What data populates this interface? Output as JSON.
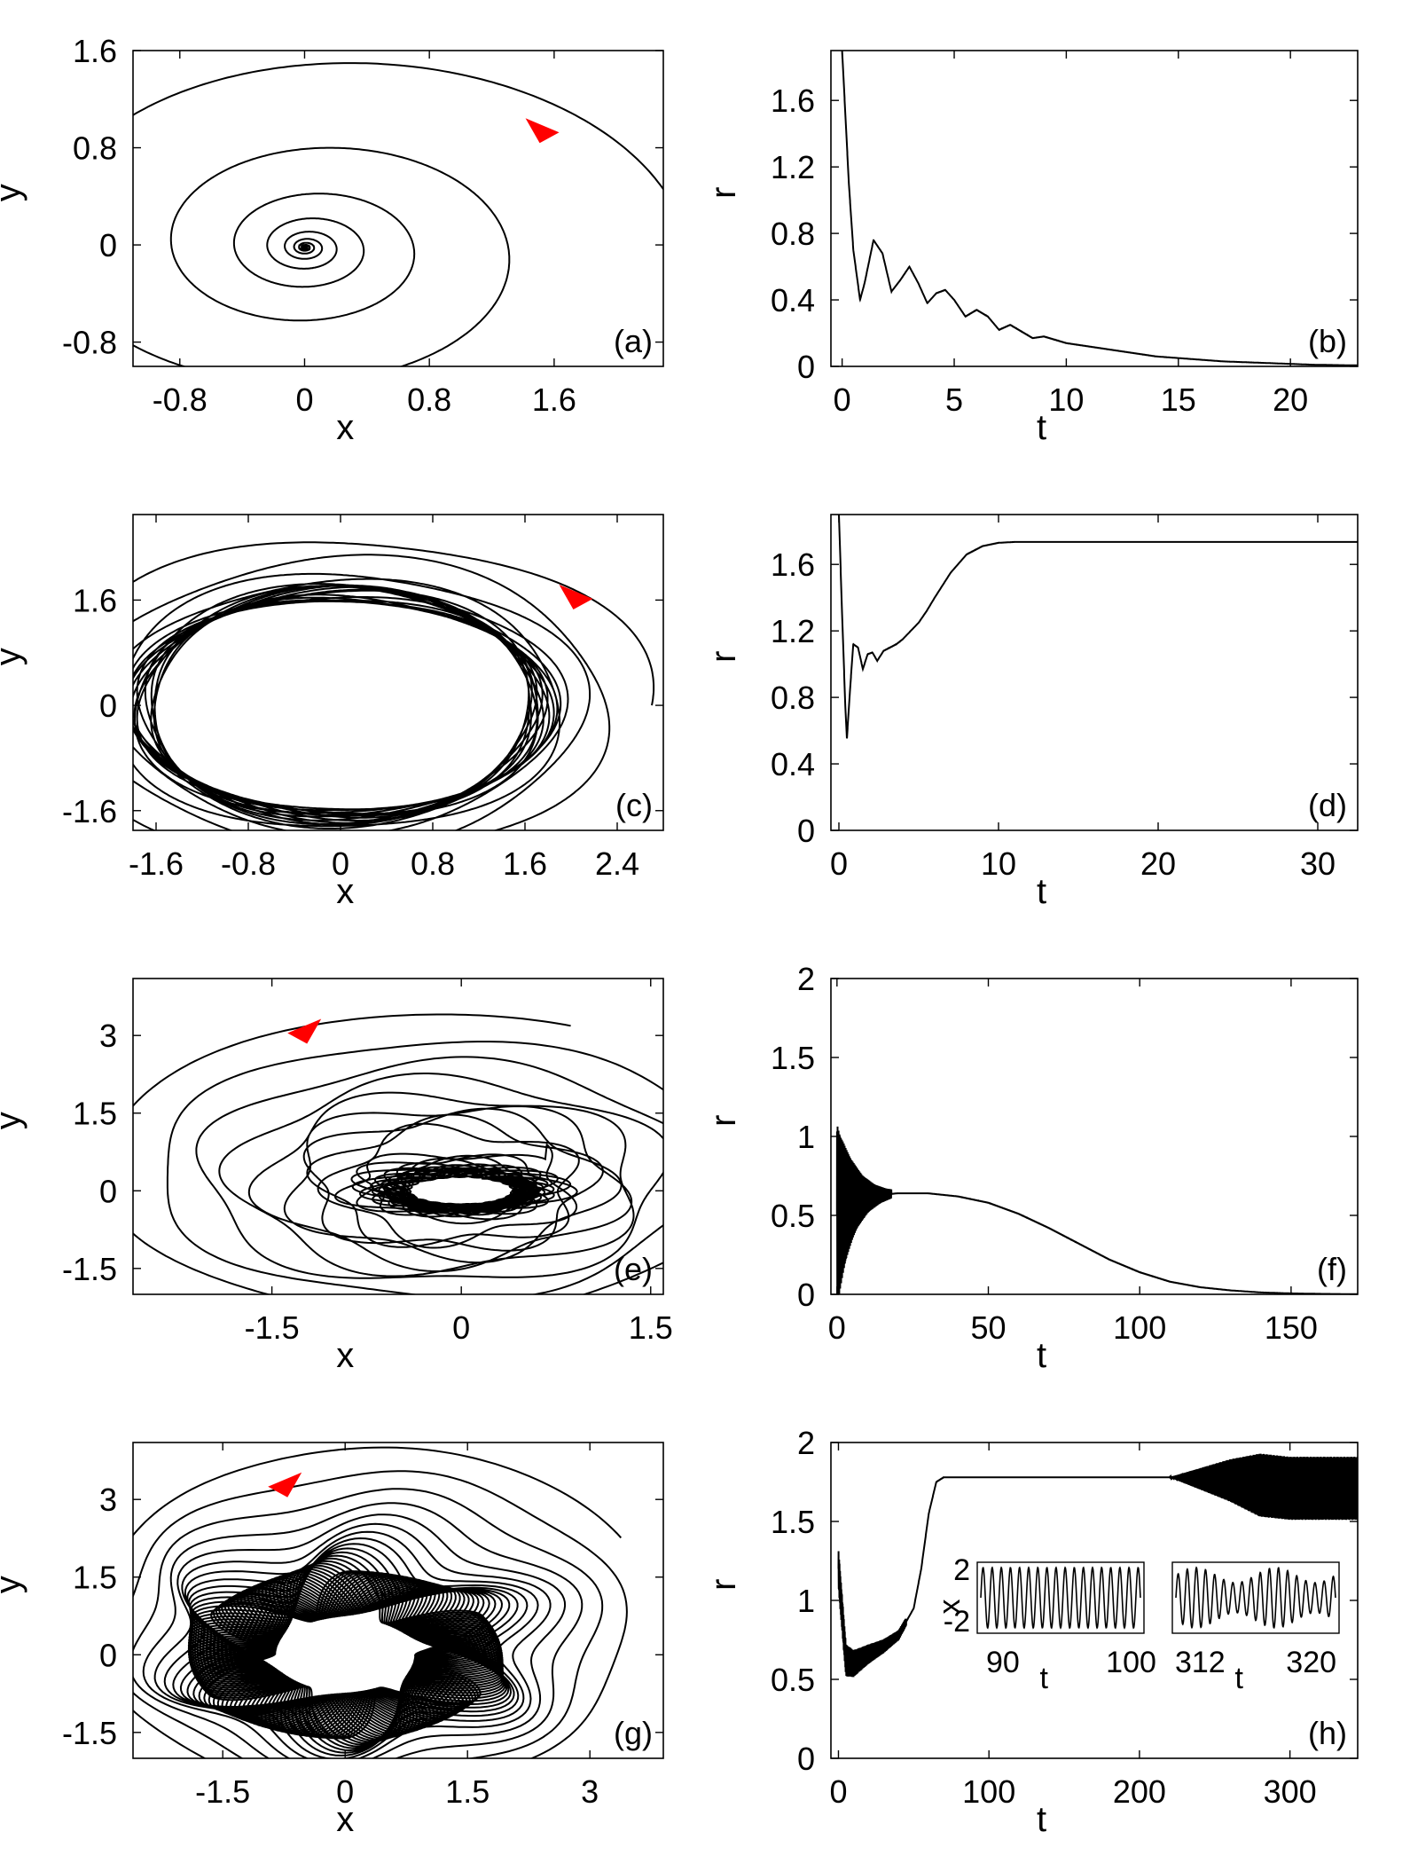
{
  "colors": {
    "ink": "#000000",
    "arrow": "#ff0000",
    "background": "#ffffff"
  },
  "chart_data": [
    {
      "id": "a",
      "type": "line",
      "panel_label": "(a)",
      "xlabel": "x",
      "ylabel": "y",
      "xlim": [
        -1.1,
        2.3
      ],
      "ylim": [
        -1.0,
        1.6
      ],
      "xticks": [
        -0.8,
        0,
        0.8,
        1.6
      ],
      "xtick_labels": [
        "-0.8",
        "0",
        "0.8",
        "1.6"
      ],
      "yticks": [
        -0.8,
        0,
        0.8,
        1.6
      ],
      "ytick_labels": [
        "-0.8",
        "0",
        "0.8",
        "1.6"
      ],
      "trajectory": {
        "x0": 2.28,
        "y0": 0.0,
        "start_radius": 2.2,
        "start_radius_ratio": 2.5,
        "final_radius": 0.0,
        "center": [
          0.0,
          -0.02
        ],
        "turns": 25,
        "decay": 0.28,
        "orbit_decay": 0.18
      },
      "arrow_at": [
        1.53,
        0.97
      ]
    },
    {
      "id": "b",
      "type": "line",
      "panel_label": "(b)",
      "xlabel": "t",
      "ylabel": "r",
      "xlim": [
        -0.5,
        23
      ],
      "ylim": [
        0,
        1.9
      ],
      "xticks": [
        0,
        5,
        10,
        15,
        20
      ],
      "xtick_labels": [
        "0",
        "5",
        "10",
        "15",
        "20"
      ],
      "yticks": [
        0,
        0.4,
        0.8,
        1.2,
        1.6
      ],
      "ytick_labels": [
        "0",
        "0.4",
        "0.8",
        "1.2",
        "1.6"
      ],
      "series": [
        {
          "x": [
            0,
            0.15,
            0.3,
            0.5,
            0.8,
            1.0,
            1.4,
            1.8,
            2.2,
            2.6,
            3.0,
            3.4,
            3.8,
            4.2,
            4.6,
            5.0,
            5.5,
            6.0,
            6.5,
            7.0,
            7.5,
            8.0,
            8.5,
            9.0,
            10,
            11,
            12,
            13,
            14,
            15,
            16,
            17,
            18,
            19,
            20,
            21,
            22,
            23
          ],
          "y": [
            1.9,
            1.5,
            1.1,
            0.7,
            0.4,
            0.5,
            0.76,
            0.68,
            0.45,
            0.52,
            0.6,
            0.5,
            0.38,
            0.44,
            0.46,
            0.4,
            0.3,
            0.34,
            0.3,
            0.22,
            0.25,
            0.21,
            0.17,
            0.18,
            0.14,
            0.12,
            0.1,
            0.08,
            0.06,
            0.05,
            0.04,
            0.03,
            0.025,
            0.02,
            0.015,
            0.01,
            0.008,
            0.006
          ]
        }
      ]
    },
    {
      "id": "c",
      "type": "line",
      "panel_label": "(c)",
      "xlabel": "x",
      "ylabel": "y",
      "xlim": [
        -1.8,
        2.8
      ],
      "ylim": [
        -1.9,
        2.9
      ],
      "xticks": [
        -1.6,
        -0.8,
        0,
        0.8,
        1.6,
        2.4
      ],
      "xtick_labels": [
        "-1.6",
        "-0.8",
        "0",
        "0.8",
        "1.6",
        "2.4"
      ],
      "yticks": [
        -1.6,
        0,
        1.6
      ],
      "ytick_labels": [
        "-1.6",
        "0",
        "1.6"
      ],
      "trajectory": {
        "x0": 2.78,
        "y0": 0.0,
        "start_radius": 2.7,
        "final_radius": 1.73,
        "center": [
          0.0,
          0.0
        ],
        "turns": 18,
        "decay": 0.3,
        "inner_radius": 0.9
      },
      "arrow_at": [
        2.05,
        1.7
      ]
    },
    {
      "id": "d",
      "type": "line",
      "panel_label": "(d)",
      "xlabel": "t",
      "ylabel": "r",
      "xlim": [
        -0.5,
        32.5
      ],
      "ylim": [
        0,
        1.9
      ],
      "xticks": [
        0,
        10,
        20,
        30
      ],
      "xtick_labels": [
        "0",
        "10",
        "20",
        "30"
      ],
      "yticks": [
        0,
        0.4,
        0.8,
        1.2,
        1.6
      ],
      "ytick_labels": [
        "0",
        "0.4",
        "0.8",
        "1.2",
        "1.6"
      ],
      "series": [
        {
          "x": [
            0,
            0.2,
            0.4,
            0.5,
            0.7,
            0.9,
            1.2,
            1.5,
            1.8,
            2.1,
            2.4,
            2.8,
            3.2,
            3.6,
            4.0,
            4.5,
            5.0,
            5.5,
            6.0,
            7.0,
            8.0,
            9.0,
            10.0,
            11.0,
            12.0,
            14.0,
            20.0,
            25.0,
            32.5
          ],
          "y": [
            1.9,
            1.3,
            0.75,
            0.55,
            0.85,
            1.12,
            1.1,
            0.97,
            1.06,
            1.07,
            1.02,
            1.08,
            1.1,
            1.12,
            1.15,
            1.2,
            1.25,
            1.32,
            1.4,
            1.55,
            1.66,
            1.71,
            1.73,
            1.735,
            1.735,
            1.735,
            1.735,
            1.735,
            1.735
          ]
        }
      ]
    },
    {
      "id": "e",
      "type": "line",
      "panel_label": "(e)",
      "xlabel": "x",
      "ylabel": "y",
      "xlim": [
        -2.6,
        1.6
      ],
      "ylim": [
        -2.0,
        4.1
      ],
      "xticks": [
        -1.5,
        0,
        1.5
      ],
      "xtick_labels": [
        "-1.5",
        "0",
        "1.5"
      ],
      "yticks": [
        -1.5,
        0,
        1.5,
        3
      ],
      "ytick_labels": [
        "-1.5",
        "0",
        "1.5",
        "3"
      ],
      "trajectory": {
        "x0": 1.6,
        "y0": 3.6,
        "start_radius": 3.0,
        "final_radius": 0.0,
        "center": [
          0.0,
          0.0
        ],
        "turns": 30,
        "decay": 0.15,
        "core_radius": 0.75
      },
      "arrow_at": [
        -1.25,
        3.15
      ]
    },
    {
      "id": "f",
      "type": "line",
      "panel_label": "(f)",
      "xlabel": "t",
      "ylabel": "r",
      "xlim": [
        -2,
        172
      ],
      "ylim": [
        0,
        2
      ],
      "xticks": [
        0,
        50,
        100,
        150
      ],
      "xtick_labels": [
        "0",
        "50",
        "100",
        "150"
      ],
      "yticks": [
        0,
        0.5,
        1,
        1.5,
        2
      ],
      "ytick_labels": [
        "0",
        "0.5",
        "1",
        "1.5",
        "2"
      ],
      "series": [
        {
          "x": [
            0,
            2,
            5,
            10,
            15,
            20,
            25,
            30,
            40,
            50,
            60,
            70,
            80,
            90,
            100,
            110,
            120,
            130,
            140,
            150,
            160,
            172
          ],
          "y": [
            0.5,
            0.55,
            0.6,
            0.62,
            0.63,
            0.64,
            0.64,
            0.64,
            0.62,
            0.58,
            0.51,
            0.42,
            0.32,
            0.22,
            0.14,
            0.08,
            0.045,
            0.025,
            0.012,
            0.006,
            0.003,
            0.001
          ]
        }
      ],
      "oscillation_envelope": {
        "t_end": 18,
        "amplitude_start": 0.65
      }
    },
    {
      "id": "g",
      "type": "line",
      "panel_label": "(g)",
      "xlabel": "x",
      "ylabel": "y",
      "xlim": [
        -2.6,
        3.9
      ],
      "ylim": [
        -2.0,
        4.1
      ],
      "xticks": [
        -1.5,
        0,
        1.5,
        3
      ],
      "xtick_labels": [
        "-1.5",
        "0",
        "1.5",
        "3"
      ],
      "yticks": [
        -1.5,
        0,
        1.5,
        3
      ],
      "ytick_labels": [
        "-1.5",
        "0",
        "1.5",
        "3"
      ],
      "trajectory": {
        "x0": 3.9,
        "y0": 2.1,
        "start_radius": 3.5,
        "final_radius": 1.9,
        "center": [
          0.0,
          0.0
        ],
        "turns": 40,
        "decay": 0.2,
        "inner_radius": 0.3
      },
      "arrow_at": [
        -0.75,
        3.35
      ]
    },
    {
      "id": "h",
      "type": "line",
      "panel_label": "(h)",
      "xlabel": "t",
      "ylabel": "r",
      "xlim": [
        -5,
        345
      ],
      "ylim": [
        0,
        2
      ],
      "xticks": [
        0,
        100,
        200,
        300
      ],
      "xtick_labels": [
        "0",
        "100",
        "200",
        "300"
      ],
      "yticks": [
        0,
        0.5,
        1,
        1.5,
        2
      ],
      "ytick_labels": [
        "0",
        "0.5",
        "1",
        "1.5",
        "2"
      ],
      "series": [
        {
          "x": [
            0,
            5,
            10,
            20,
            30,
            40,
            50,
            55,
            60,
            65,
            70,
            80,
            100,
            150,
            200,
            220,
            240,
            260,
            280,
            300,
            320,
            345
          ],
          "y": [
            1.2,
            0.62,
            0.6,
            0.66,
            0.71,
            0.78,
            0.95,
            1.2,
            1.55,
            1.75,
            1.78,
            1.78,
            1.78,
            1.78,
            1.78,
            1.78,
            1.77,
            1.76,
            1.73,
            1.71,
            1.71,
            1.71
          ]
        }
      ],
      "oscillation_envelope": {
        "t_osc_start": 220,
        "amplitude_max": 0.2
      },
      "insets": [
        {
          "xlabel": "t",
          "ylabel": "x",
          "xtick_labels": [
            "90",
            "100"
          ],
          "xrange": [
            88,
            101
          ],
          "ytick_labels": [
            "2",
            "-2"
          ],
          "ylim": [
            -2,
            2
          ],
          "type": "sine",
          "period": 0.7
        },
        {
          "xlabel": "t",
          "ylabel": "",
          "xtick_labels": [
            "312",
            "320"
          ],
          "xrange": [
            310,
            322
          ],
          "ytick_labels": [],
          "ylim": [
            -2,
            2
          ],
          "type": "modulated",
          "period": 0.7
        }
      ]
    }
  ]
}
